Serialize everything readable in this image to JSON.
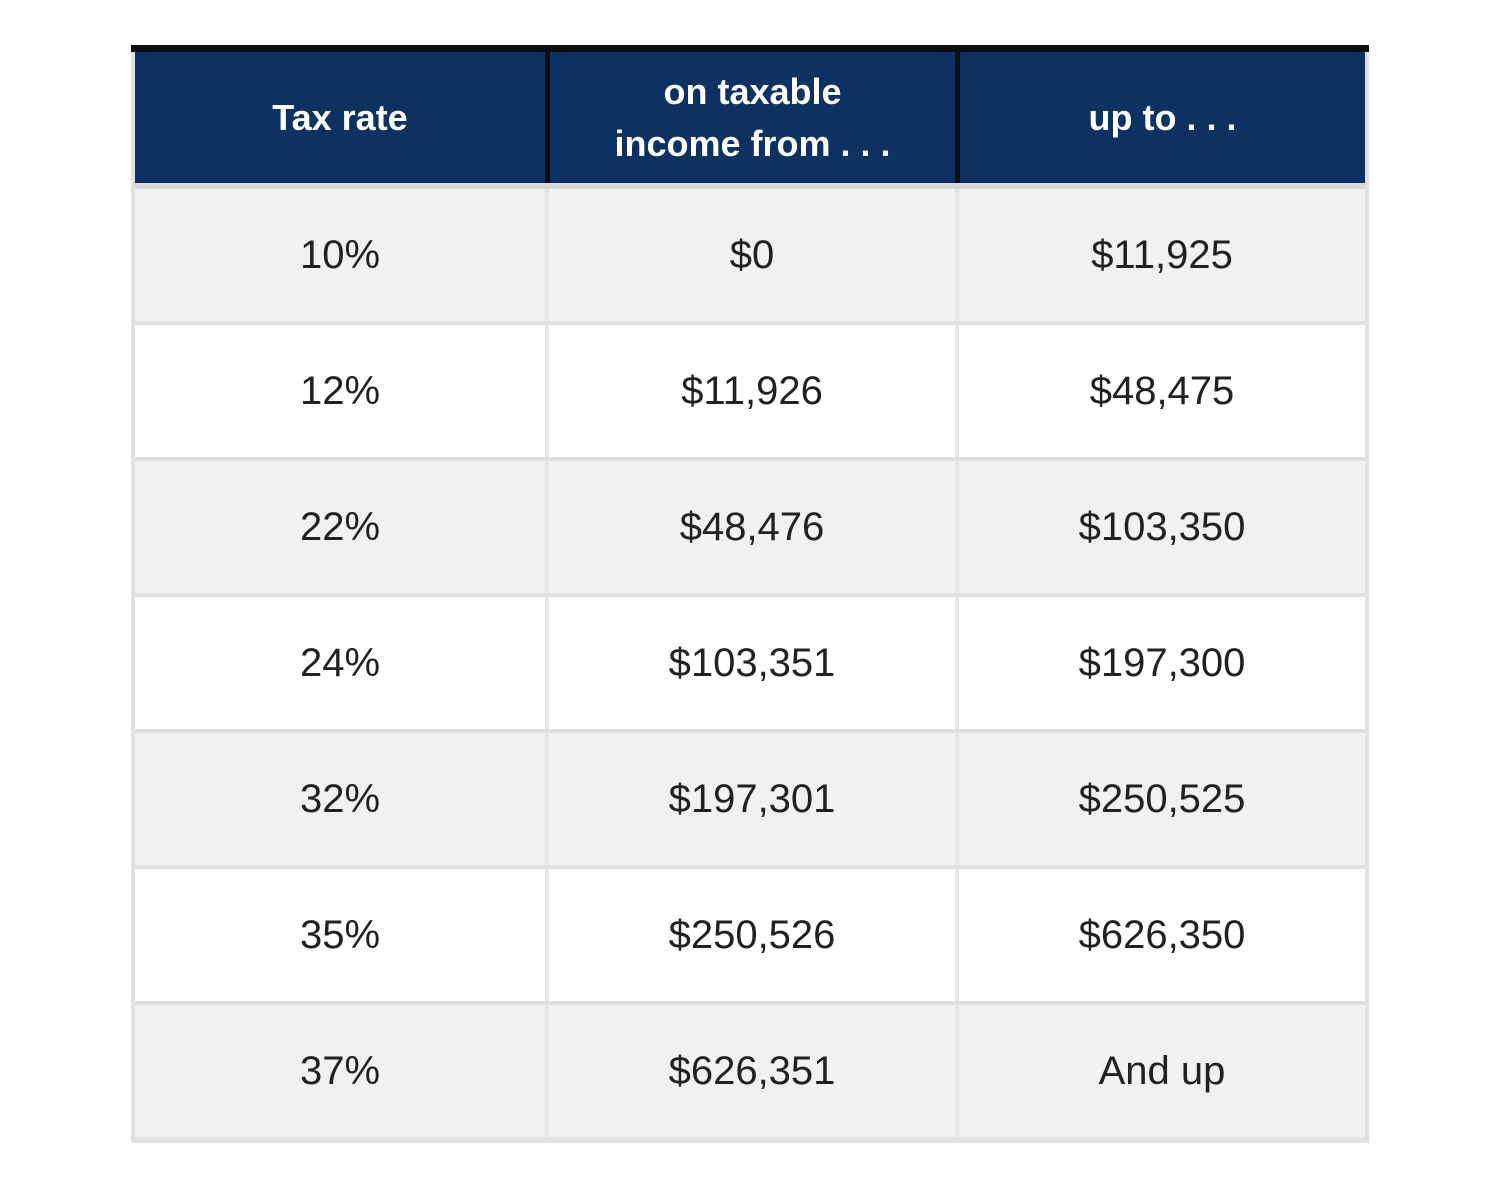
{
  "chart_data": {
    "type": "table",
    "description": "Federal income tax brackets: tax rate applied to taxable income ranges",
    "columns": [
      "Tax rate",
      "on taxable income from . . .",
      "up to . . ."
    ],
    "rows": [
      [
        "10%",
        "$0",
        "$11,925"
      ],
      [
        "12%",
        "$11,926",
        "$48,475"
      ],
      [
        "22%",
        "$48,476",
        "$103,350"
      ],
      [
        "24%",
        "$103,351",
        "$197,300"
      ],
      [
        "32%",
        "$197,301",
        "$250,525"
      ],
      [
        "35%",
        "$250,526",
        "$626,350"
      ],
      [
        "37%",
        "$626,351",
        "And up"
      ]
    ]
  },
  "colors": {
    "header_bg": "#0d3160",
    "header_text": "#ffffff",
    "top_border": "#0e0e0e",
    "header_divider": "#0e0e0e",
    "row_alt_bg": "#f1f1f1",
    "row_bg": "#ffffff",
    "grid_border": "#e0e0e0",
    "body_text": "#212121"
  }
}
